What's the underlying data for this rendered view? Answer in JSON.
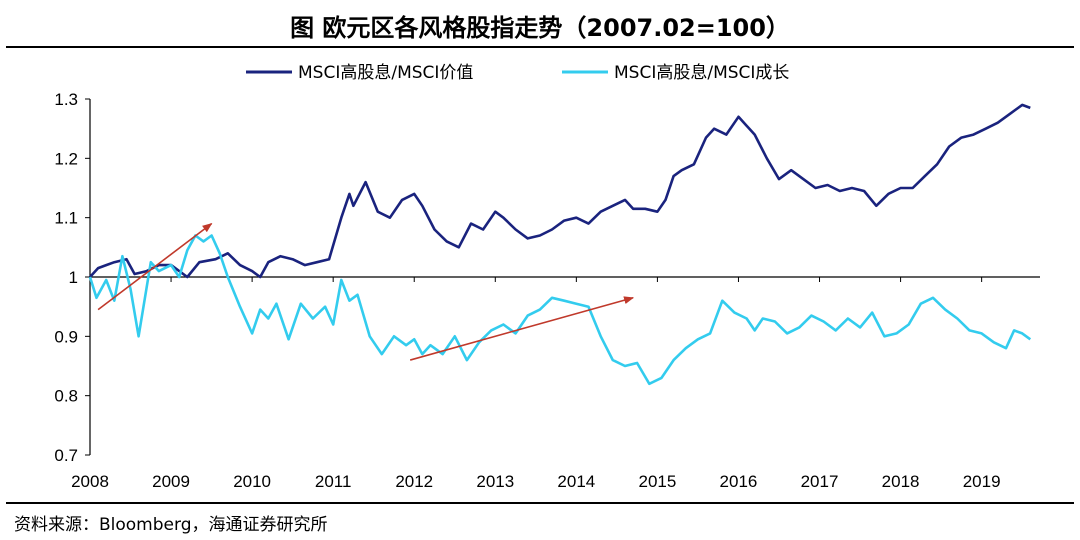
{
  "header": {
    "title": "图 欧元区各风格股指走势（2007.02=100）"
  },
  "footer": {
    "source": "资料来源：Bloomberg，海通证券研究所"
  },
  "chart_data": {
    "type": "line",
    "title": "图 欧元区各风格股指走势（2007.02=100）",
    "xlabel": "",
    "ylabel": "",
    "xlim": [
      2008.0,
      2019.65
    ],
    "ylim": [
      0.7,
      1.3
    ],
    "x_ticks": [
      "2008",
      "2009",
      "2010",
      "2011",
      "2012",
      "2013",
      "2014",
      "2015",
      "2016",
      "2017",
      "2018",
      "2019"
    ],
    "y_ticks": [
      "0.7",
      "0.8",
      "0.9",
      "1",
      "1.1",
      "1.2",
      "1.3"
    ],
    "legend_position": "top",
    "grid": false,
    "series": [
      {
        "name": "MSCI高股息/MSCI价值",
        "color": "#1a237e",
        "x": [
          2008.0,
          2008.1,
          2008.2,
          2008.3,
          2008.45,
          2008.55,
          2008.7,
          2008.85,
          2009.0,
          2009.2,
          2009.35,
          2009.55,
          2009.7,
          2009.85,
          2010.0,
          2010.1,
          2010.2,
          2010.35,
          2010.5,
          2010.65,
          2010.8,
          2010.95,
          2011.1,
          2011.2,
          2011.25,
          2011.4,
          2011.55,
          2011.7,
          2011.85,
          2012.0,
          2012.1,
          2012.25,
          2012.4,
          2012.55,
          2012.7,
          2012.85,
          2013.0,
          2013.1,
          2013.25,
          2013.4,
          2013.55,
          2013.7,
          2013.85,
          2014.0,
          2014.15,
          2014.3,
          2014.45,
          2014.6,
          2014.7,
          2014.85,
          2015.0,
          2015.1,
          2015.2,
          2015.3,
          2015.45,
          2015.6,
          2015.7,
          2015.85,
          2016.0,
          2016.1,
          2016.2,
          2016.35,
          2016.5,
          2016.65,
          2016.8,
          2016.95,
          2017.1,
          2017.25,
          2017.4,
          2017.55,
          2017.7,
          2017.85,
          2018.0,
          2018.15,
          2018.3,
          2018.45,
          2018.6,
          2018.75,
          2018.9,
          2019.05,
          2019.2,
          2019.35,
          2019.5,
          2019.6
        ],
        "y": [
          1.0,
          1.015,
          1.02,
          1.025,
          1.03,
          1.005,
          1.01,
          1.02,
          1.02,
          1.0,
          1.025,
          1.03,
          1.04,
          1.02,
          1.01,
          1.0,
          1.025,
          1.035,
          1.03,
          1.02,
          1.025,
          1.03,
          1.1,
          1.14,
          1.12,
          1.16,
          1.11,
          1.1,
          1.13,
          1.14,
          1.12,
          1.08,
          1.06,
          1.05,
          1.09,
          1.08,
          1.11,
          1.1,
          1.08,
          1.065,
          1.07,
          1.08,
          1.095,
          1.1,
          1.09,
          1.11,
          1.12,
          1.13,
          1.115,
          1.115,
          1.11,
          1.13,
          1.17,
          1.18,
          1.19,
          1.235,
          1.25,
          1.24,
          1.27,
          1.255,
          1.24,
          1.2,
          1.165,
          1.18,
          1.165,
          1.15,
          1.155,
          1.145,
          1.15,
          1.145,
          1.12,
          1.14,
          1.15,
          1.15,
          1.17,
          1.19,
          1.22,
          1.235,
          1.24,
          1.25,
          1.26,
          1.275,
          1.29,
          1.285
        ]
      },
      {
        "name": "MSCI高股息/MSCI成长",
        "color": "#33ccee",
        "x": [
          2008.0,
          2008.08,
          2008.2,
          2008.3,
          2008.4,
          2008.5,
          2008.6,
          2008.75,
          2008.85,
          2009.0,
          2009.1,
          2009.2,
          2009.3,
          2009.4,
          2009.5,
          2009.6,
          2009.7,
          2009.85,
          2010.0,
          2010.1,
          2010.2,
          2010.3,
          2010.45,
          2010.6,
          2010.75,
          2010.9,
          2011.0,
          2011.1,
          2011.2,
          2011.3,
          2011.45,
          2011.6,
          2011.75,
          2011.9,
          2012.0,
          2012.1,
          2012.2,
          2012.35,
          2012.5,
          2012.65,
          2012.8,
          2012.95,
          2013.1,
          2013.25,
          2013.4,
          2013.55,
          2013.7,
          2013.85,
          2014.0,
          2014.15,
          2014.3,
          2014.45,
          2014.6,
          2014.75,
          2014.9,
          2015.05,
          2015.2,
          2015.35,
          2015.5,
          2015.65,
          2015.8,
          2015.95,
          2016.1,
          2016.2,
          2016.3,
          2016.45,
          2016.6,
          2016.75,
          2016.9,
          2017.05,
          2017.2,
          2017.35,
          2017.5,
          2017.65,
          2017.8,
          2017.95,
          2018.1,
          2018.25,
          2018.4,
          2018.55,
          2018.7,
          2018.85,
          2019.0,
          2019.15,
          2019.3,
          2019.4,
          2019.5,
          2019.6
        ],
        "y": [
          1.0,
          0.965,
          0.995,
          0.96,
          1.035,
          0.98,
          0.9,
          1.025,
          1.01,
          1.02,
          1.0,
          1.045,
          1.07,
          1.06,
          1.07,
          1.04,
          1.0,
          0.95,
          0.905,
          0.945,
          0.93,
          0.955,
          0.895,
          0.955,
          0.93,
          0.95,
          0.92,
          0.995,
          0.96,
          0.97,
          0.9,
          0.87,
          0.9,
          0.885,
          0.895,
          0.87,
          0.885,
          0.87,
          0.9,
          0.86,
          0.89,
          0.91,
          0.92,
          0.905,
          0.935,
          0.945,
          0.965,
          0.96,
          0.955,
          0.95,
          0.9,
          0.86,
          0.85,
          0.855,
          0.82,
          0.83,
          0.86,
          0.88,
          0.895,
          0.905,
          0.96,
          0.94,
          0.93,
          0.91,
          0.93,
          0.925,
          0.905,
          0.915,
          0.935,
          0.925,
          0.91,
          0.93,
          0.915,
          0.94,
          0.9,
          0.905,
          0.92,
          0.955,
          0.965,
          0.945,
          0.93,
          0.91,
          0.905,
          0.89,
          0.88,
          0.91,
          0.905,
          0.895
        ]
      }
    ],
    "annotations": [
      {
        "type": "arrow",
        "color": "#c0392b",
        "from": [
          2008.1,
          0.945
        ],
        "to": [
          2009.5,
          1.09
        ]
      },
      {
        "type": "arrow",
        "color": "#c0392b",
        "from": [
          2011.95,
          0.86
        ],
        "to": [
          2014.7,
          0.965
        ]
      }
    ]
  }
}
